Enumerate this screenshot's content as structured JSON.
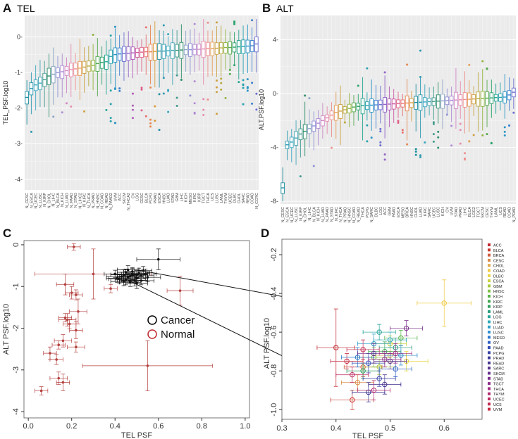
{
  "chart_data": [
    {
      "panel": "A",
      "type": "box",
      "title": "TEL",
      "ylabel": "TEL_PSF.log10",
      "xlabel": "",
      "ylim": [
        -4.3,
        0.6
      ],
      "yticks": [
        0,
        -1,
        -2,
        -3,
        -4
      ],
      "ytick_labels": [
        "0-",
        "-1-",
        "-2-",
        "-3-",
        "-4-"
      ],
      "categories": [
        "N_CESC",
        "N_ESCA",
        "N_UCEC",
        "N_LUSC",
        "N_KIRP",
        "N_CHOL",
        "N_LIHC",
        "N_BLCA",
        "N_KICH",
        "N_LUAD",
        "N_PAAD",
        "N_STAD",
        "N_LIHC2",
        "N_KIRC",
        "N_THCA",
        "N_PRAD",
        "N_HNSC",
        "N_COAD",
        "N_READ",
        "N_PAAD2",
        "UVM",
        "ACC",
        "SKCM",
        "N_THCA2",
        "OV",
        "LGG",
        "CESC",
        "BLCA",
        "PCPG",
        "PRAD",
        "ESCA",
        "HNSC",
        "LUAD",
        "STAD",
        "GBM",
        "LIHC",
        "KICH",
        "MESO",
        "KIRC",
        "KIRP",
        "TGCT",
        "THCA",
        "UCS",
        "LUSC",
        "LAML",
        "THYM",
        "UCEC",
        "DLBC",
        "CHOL",
        "SARC",
        "READ",
        "COAD",
        "N_CCRC"
      ],
      "medians": [
        -1.7,
        -1.45,
        -1.35,
        -1.3,
        -1.2,
        -1.1,
        -1.05,
        -1.0,
        -0.98,
        -0.95,
        -0.92,
        -0.9,
        -0.88,
        -0.85,
        -0.82,
        -0.8,
        -0.75,
        -0.72,
        -0.7,
        -0.55,
        -0.5,
        -0.48,
        -0.47,
        -0.46,
        -0.45,
        -0.44,
        -0.43,
        -0.42,
        -0.42,
        -0.41,
        -0.4,
        -0.4,
        -0.39,
        -0.38,
        -0.38,
        -0.37,
        -0.36,
        -0.36,
        -0.35,
        -0.35,
        -0.34,
        -0.33,
        -0.33,
        -0.32,
        -0.31,
        -0.3,
        -0.3,
        -0.29,
        -0.28,
        -0.27,
        -0.26,
        -0.25,
        -0.2
      ]
    },
    {
      "panel": "B",
      "type": "box",
      "title": "ALT",
      "ylabel": "ALT.PSF.log10",
      "xlabel": "",
      "ylim": [
        -8.2,
        5.8
      ],
      "yticks": [
        4,
        0,
        -4,
        -8
      ],
      "ytick_labels": [
        "4-",
        "0-",
        "-4-",
        "-8-"
      ],
      "categories": [
        "N_CESC",
        "N_ESCA",
        "N_UCEC",
        "N_LUSC",
        "N_KIRP",
        "N_CHOL",
        "N_LIHC",
        "N_BLCA",
        "N_KICH",
        "N_LUAD",
        "N_PAAD",
        "N_STAD",
        "N_KIRC",
        "N_THCA",
        "N_PRAD",
        "N_HNSC",
        "N_COAD",
        "N_READ",
        "THCA",
        "PCPG",
        "N_SARC",
        "DLBC",
        "LGG",
        "ACC",
        "GBM",
        "PAAD",
        "ESCA",
        "MESO",
        "BRCA",
        "HNSC",
        "CHOL",
        "LUAD",
        "KIRC",
        "SARC",
        "UCEC",
        "LUSC",
        "KICH",
        "OV",
        "UVM",
        "STAD",
        "PRAD",
        "LIHC",
        "BLCA",
        "LGG2",
        "TGCT",
        "SKCM",
        "CESC",
        "THYM",
        "LAML",
        "UCS",
        "READ",
        "COAD",
        "N_PRAD"
      ],
      "medians": [
        -7.0,
        -3.8,
        -3.6,
        -3.3,
        -3.0,
        -2.8,
        -2.6,
        -2.4,
        -2.2,
        -2.0,
        -1.8,
        -1.6,
        -1.4,
        -1.3,
        -1.2,
        -1.1,
        -1.0,
        -0.95,
        -0.9,
        -0.88,
        -0.86,
        -0.84,
        -0.82,
        -0.8,
        -0.78,
        -0.76,
        -0.74,
        -0.72,
        -0.7,
        -0.68,
        -0.66,
        -0.64,
        -0.62,
        -0.6,
        -0.58,
        -0.56,
        -0.54,
        -0.52,
        -0.5,
        -0.48,
        -0.46,
        -0.44,
        -0.42,
        -0.4,
        -0.38,
        -0.36,
        -0.34,
        -0.32,
        -0.3,
        -0.28,
        -0.26,
        -0.1,
        0.1
      ]
    },
    {
      "panel": "C",
      "type": "scatter",
      "title": "",
      "xlabel": "TEL PSF",
      "ylabel": "ALT PSF.log10",
      "xlim": [
        -0.02,
        1.02
      ],
      "ylim": [
        -4.15,
        0.1
      ],
      "xticks": [
        0.0,
        0.2,
        0.4,
        0.6,
        0.8,
        1.0
      ],
      "xtick_labels": [
        "0.0",
        "0.2",
        "0.4",
        "0.6",
        "0.8",
        "1.0"
      ],
      "yticks": [
        0,
        -1,
        -2,
        -3,
        -4
      ],
      "ytick_labels": [
        "0",
        "-1",
        "-2",
        "-3",
        "-4"
      ],
      "legend": [
        {
          "label": "Cancer",
          "color": "#000000"
        },
        {
          "label": "Normal",
          "color": "#c0282d"
        }
      ],
      "series": [
        {
          "name": "Cancer",
          "color": "#111111",
          "points": [
            {
              "x": 0.44,
              "y": -0.72,
              "xerr": 0.06,
              "yerr": 0.12
            },
            {
              "x": 0.46,
              "y": -0.78,
              "xerr": 0.05,
              "yerr": 0.1
            },
            {
              "x": 0.48,
              "y": -0.7,
              "xerr": 0.07,
              "yerr": 0.13
            },
            {
              "x": 0.5,
              "y": -0.8,
              "xerr": 0.04,
              "yerr": 0.09
            },
            {
              "x": 0.42,
              "y": -0.82,
              "xerr": 0.05,
              "yerr": 0.11
            },
            {
              "x": 0.52,
              "y": -0.74,
              "xerr": 0.06,
              "yerr": 0.12
            },
            {
              "x": 0.47,
              "y": -0.9,
              "xerr": 0.05,
              "yerr": 0.1
            },
            {
              "x": 0.45,
              "y": -0.66,
              "xerr": 0.04,
              "yerr": 0.08
            },
            {
              "x": 0.51,
              "y": -0.68,
              "xerr": 0.05,
              "yerr": 0.12
            },
            {
              "x": 0.43,
              "y": -0.76,
              "xerr": 0.07,
              "yerr": 0.1
            },
            {
              "x": 0.49,
              "y": -0.85,
              "xerr": 0.06,
              "yerr": 0.14
            },
            {
              "x": 0.53,
              "y": -0.62,
              "xerr": 0.04,
              "yerr": 0.1
            },
            {
              "x": 0.4,
              "y": -0.7,
              "xerr": 0.05,
              "yerr": 0.09
            },
            {
              "x": 0.55,
              "y": -0.78,
              "xerr": 0.06,
              "yerr": 0.11
            },
            {
              "x": 0.46,
              "y": -0.6,
              "xerr": 0.05,
              "yerr": 0.1
            },
            {
              "x": 0.5,
              "y": -0.92,
              "xerr": 0.05,
              "yerr": 0.13
            },
            {
              "x": 0.44,
              "y": -0.88,
              "xerr": 0.06,
              "yerr": 0.1
            },
            {
              "x": 0.48,
              "y": -0.64,
              "xerr": 0.04,
              "yerr": 0.09
            },
            {
              "x": 0.41,
              "y": -0.8,
              "xerr": 0.05,
              "yerr": 0.1
            },
            {
              "x": 0.54,
              "y": -0.7,
              "xerr": 0.05,
              "yerr": 0.12
            },
            {
              "x": 0.47,
              "y": -0.75,
              "xerr": 0.06,
              "yerr": 0.11
            },
            {
              "x": 0.5,
              "y": -0.72,
              "xerr": 0.05,
              "yerr": 0.1
            },
            {
              "x": 0.45,
              "y": -0.84,
              "xerr": 0.05,
              "yerr": 0.12
            },
            {
              "x": 0.52,
              "y": -0.86,
              "xerr": 0.06,
              "yerr": 0.1
            },
            {
              "x": 0.6,
              "y": -0.35,
              "xerr": 0.1,
              "yerr": 0.25
            }
          ]
        },
        {
          "name": "Normal",
          "color": "#b4413f",
          "points": [
            {
              "x": 0.21,
              "y": -0.05,
              "xerr": 0.03,
              "yerr": 0.08
            },
            {
              "x": 0.3,
              "y": -0.7,
              "xerr": 0.27,
              "yerr": 0.6
            },
            {
              "x": 0.17,
              "y": -0.95,
              "xerr": 0.04,
              "yerr": 0.25
            },
            {
              "x": 0.2,
              "y": -1.15,
              "xerr": 0.03,
              "yerr": 0.15
            },
            {
              "x": 0.22,
              "y": -1.2,
              "xerr": 0.03,
              "yerr": 0.12
            },
            {
              "x": 0.23,
              "y": -1.6,
              "xerr": 0.04,
              "yerr": 0.3
            },
            {
              "x": 0.17,
              "y": -1.75,
              "xerr": 0.03,
              "yerr": 0.1
            },
            {
              "x": 0.18,
              "y": -1.8,
              "xerr": 0.04,
              "yerr": 0.15
            },
            {
              "x": 0.19,
              "y": -1.9,
              "xerr": 0.03,
              "yerr": 0.12
            },
            {
              "x": 0.22,
              "y": -2.05,
              "xerr": 0.03,
              "yerr": 0.2
            },
            {
              "x": 0.16,
              "y": -2.3,
              "xerr": 0.04,
              "yerr": 0.15
            },
            {
              "x": 0.14,
              "y": -2.4,
              "xerr": 0.03,
              "yerr": 0.1
            },
            {
              "x": 0.22,
              "y": -2.45,
              "xerr": 0.04,
              "yerr": 0.12
            },
            {
              "x": 0.1,
              "y": -2.6,
              "xerr": 0.03,
              "yerr": 0.15
            },
            {
              "x": 0.13,
              "y": -2.75,
              "xerr": 0.03,
              "yerr": 0.12
            },
            {
              "x": 0.55,
              "y": -2.9,
              "xerr": 0.3,
              "yerr": 0.6
            },
            {
              "x": 0.14,
              "y": -3.2,
              "xerr": 0.04,
              "yerr": 0.15
            },
            {
              "x": 0.16,
              "y": -3.3,
              "xerr": 0.03,
              "yerr": 0.2
            },
            {
              "x": 0.06,
              "y": -3.5,
              "xerr": 0.03,
              "yerr": 0.1
            },
            {
              "x": 0.7,
              "y": -1.1,
              "xerr": 0.06,
              "yerr": 0.35
            },
            {
              "x": 0.38,
              "y": -1.05,
              "xerr": 0.03,
              "yerr": 0.1
            }
          ]
        }
      ],
      "annotation": "zoom lines to panel D"
    },
    {
      "panel": "D",
      "type": "scatter",
      "title": "",
      "xlabel": "TEL PSF",
      "ylabel": "ALT PSF.log10",
      "xlim": [
        0.3,
        0.67
      ],
      "ylim": [
        -1.05,
        -0.12
      ],
      "xticks": [
        0.3,
        0.4,
        0.5,
        0.6
      ],
      "xtick_labels": [
        "0.3",
        "0.4",
        "0.5",
        "0.6"
      ],
      "yticks": [
        -0.2,
        -0.4,
        -0.6,
        -0.8,
        -1.0
      ],
      "ytick_labels": [
        "-0.2",
        "-0.4",
        "-0.6",
        "-0.8",
        "-1.0"
      ],
      "legend_placement": "right",
      "legend": [
        {
          "label": "ACC",
          "color": "#c0282d"
        },
        {
          "label": "BLCA",
          "color": "#c8372c"
        },
        {
          "label": "BRCA",
          "color": "#d05a3a"
        },
        {
          "label": "CESC",
          "color": "#d98a45"
        },
        {
          "label": "CHOL",
          "color": "#e0a94a"
        },
        {
          "label": "COAD",
          "color": "#f0c93e"
        },
        {
          "label": "DLBC",
          "color": "#e8d43c"
        },
        {
          "label": "ESCA",
          "color": "#c9d23a"
        },
        {
          "label": "GBM",
          "color": "#a6c93a"
        },
        {
          "label": "HNSC",
          "color": "#7fc142"
        },
        {
          "label": "KICH",
          "color": "#57b347"
        },
        {
          "label": "KIRC",
          "color": "#3aa64d"
        },
        {
          "label": "KIRP",
          "color": "#2c9a5c"
        },
        {
          "label": "LAML",
          "color": "#259b7c"
        },
        {
          "label": "LGG",
          "color": "#27a39a"
        },
        {
          "label": "LIHC",
          "color": "#2aa9b4"
        },
        {
          "label": "LUAD",
          "color": "#2b9fc7"
        },
        {
          "label": "LUSC",
          "color": "#2d8fd1"
        },
        {
          "label": "MESO",
          "color": "#2d78d0"
        },
        {
          "label": "OV",
          "color": "#2f5fc6"
        },
        {
          "label": "PAAD",
          "color": "#334db5"
        },
        {
          "label": "PCPG",
          "color": "#3540a3"
        },
        {
          "label": "PRAD",
          "color": "#3a3896"
        },
        {
          "label": "READ",
          "color": "#453390"
        },
        {
          "label": "SARC",
          "color": "#55318e"
        },
        {
          "label": "SKCM",
          "color": "#65308d"
        },
        {
          "label": "STAD",
          "color": "#7a2e8c"
        },
        {
          "label": "TGCT",
          "color": "#8d2c88"
        },
        {
          "label": "THCA",
          "color": "#a02b7f"
        },
        {
          "label": "THYM",
          "color": "#b02a70"
        },
        {
          "label": "UCEC",
          "color": "#bd2a60"
        },
        {
          "label": "UCS",
          "color": "#c32a50"
        },
        {
          "label": "UVM",
          "color": "#c52b40"
        }
      ],
      "points": [
        {
          "label": "ACC",
          "x": 0.4,
          "y": -0.68,
          "xerr": 0.035,
          "yerr": 0.2
        },
        {
          "label": "BLCA",
          "x": 0.43,
          "y": -0.95,
          "xerr": 0.04,
          "yerr": 0.05
        },
        {
          "label": "BRCA",
          "x": 0.45,
          "y": -0.78,
          "xerr": 0.035,
          "yerr": 0.05
        },
        {
          "label": "CESC",
          "x": 0.44,
          "y": -0.86,
          "xerr": 0.03,
          "yerr": 0.04
        },
        {
          "label": "CHOL",
          "x": 0.5,
          "y": -0.72,
          "xerr": 0.03,
          "yerr": 0.04
        },
        {
          "label": "COAD",
          "x": 0.6,
          "y": -0.45,
          "xerr": 0.05,
          "yerr": 0.12
        },
        {
          "label": "DLBC",
          "x": 0.53,
          "y": -0.75,
          "xerr": 0.04,
          "yerr": 0.05
        },
        {
          "label": "ESCA",
          "x": 0.5,
          "y": -0.66,
          "xerr": 0.03,
          "yerr": 0.04
        },
        {
          "label": "GBM",
          "x": 0.48,
          "y": -0.78,
          "xerr": 0.03,
          "yerr": 0.04
        },
        {
          "label": "HNSC",
          "x": 0.47,
          "y": -0.73,
          "xerr": 0.03,
          "yerr": 0.05
        },
        {
          "label": "KICH",
          "x": 0.52,
          "y": -0.63,
          "xerr": 0.03,
          "yerr": 0.04
        },
        {
          "label": "KIRC",
          "x": 0.49,
          "y": -0.7,
          "xerr": 0.03,
          "yerr": 0.05
        },
        {
          "label": "KIRP",
          "x": 0.45,
          "y": -0.8,
          "xerr": 0.03,
          "yerr": 0.04
        },
        {
          "label": "LAML",
          "x": 0.51,
          "y": -0.68,
          "xerr": 0.03,
          "yerr": 0.05
        },
        {
          "label": "LGG",
          "x": 0.48,
          "y": -0.6,
          "xerr": 0.03,
          "yerr": 0.04
        },
        {
          "label": "LIHC",
          "x": 0.5,
          "y": -0.64,
          "xerr": 0.03,
          "yerr": 0.04
        },
        {
          "label": "LUAD",
          "x": 0.47,
          "y": -0.66,
          "xerr": 0.03,
          "yerr": 0.05
        },
        {
          "label": "LUSC",
          "x": 0.52,
          "y": -0.72,
          "xerr": 0.03,
          "yerr": 0.05
        },
        {
          "label": "MESO",
          "x": 0.44,
          "y": -0.73,
          "xerr": 0.03,
          "yerr": 0.05
        },
        {
          "label": "OV",
          "x": 0.51,
          "y": -0.79,
          "xerr": 0.03,
          "yerr": 0.04
        },
        {
          "label": "PAAD",
          "x": 0.46,
          "y": -0.76,
          "xerr": 0.03,
          "yerr": 0.05
        },
        {
          "label": "PCPG",
          "x": 0.48,
          "y": -0.84,
          "xerr": 0.03,
          "yerr": 0.04
        },
        {
          "label": "PRAD",
          "x": 0.46,
          "y": -0.91,
          "xerr": 0.03,
          "yerr": 0.05
        },
        {
          "label": "READ",
          "x": 0.49,
          "y": -0.87,
          "xerr": 0.03,
          "yerr": 0.05
        },
        {
          "label": "SARC",
          "x": 0.5,
          "y": -0.75,
          "xerr": 0.03,
          "yerr": 0.04
        },
        {
          "label": "SKCM",
          "x": 0.47,
          "y": -0.71,
          "xerr": 0.03,
          "yerr": 0.05
        },
        {
          "label": "STAD",
          "x": 0.53,
          "y": -0.58,
          "xerr": 0.03,
          "yerr": 0.04
        },
        {
          "label": "TGCT",
          "x": 0.49,
          "y": -0.74,
          "xerr": 0.03,
          "yerr": 0.04
        },
        {
          "label": "THCA",
          "x": 0.51,
          "y": -0.71,
          "xerr": 0.03,
          "yerr": 0.05
        },
        {
          "label": "THYM",
          "x": 0.47,
          "y": -0.9,
          "xerr": 0.03,
          "yerr": 0.05
        },
        {
          "label": "UCEC",
          "x": 0.43,
          "y": -0.82,
          "xerr": 0.03,
          "yerr": 0.04
        },
        {
          "label": "UCS",
          "x": 0.45,
          "y": -0.69,
          "xerr": 0.03,
          "yerr": 0.05
        },
        {
          "label": "UVM",
          "x": 0.42,
          "y": -0.75,
          "xerr": 0.03,
          "yerr": 0.04
        }
      ]
    }
  ]
}
